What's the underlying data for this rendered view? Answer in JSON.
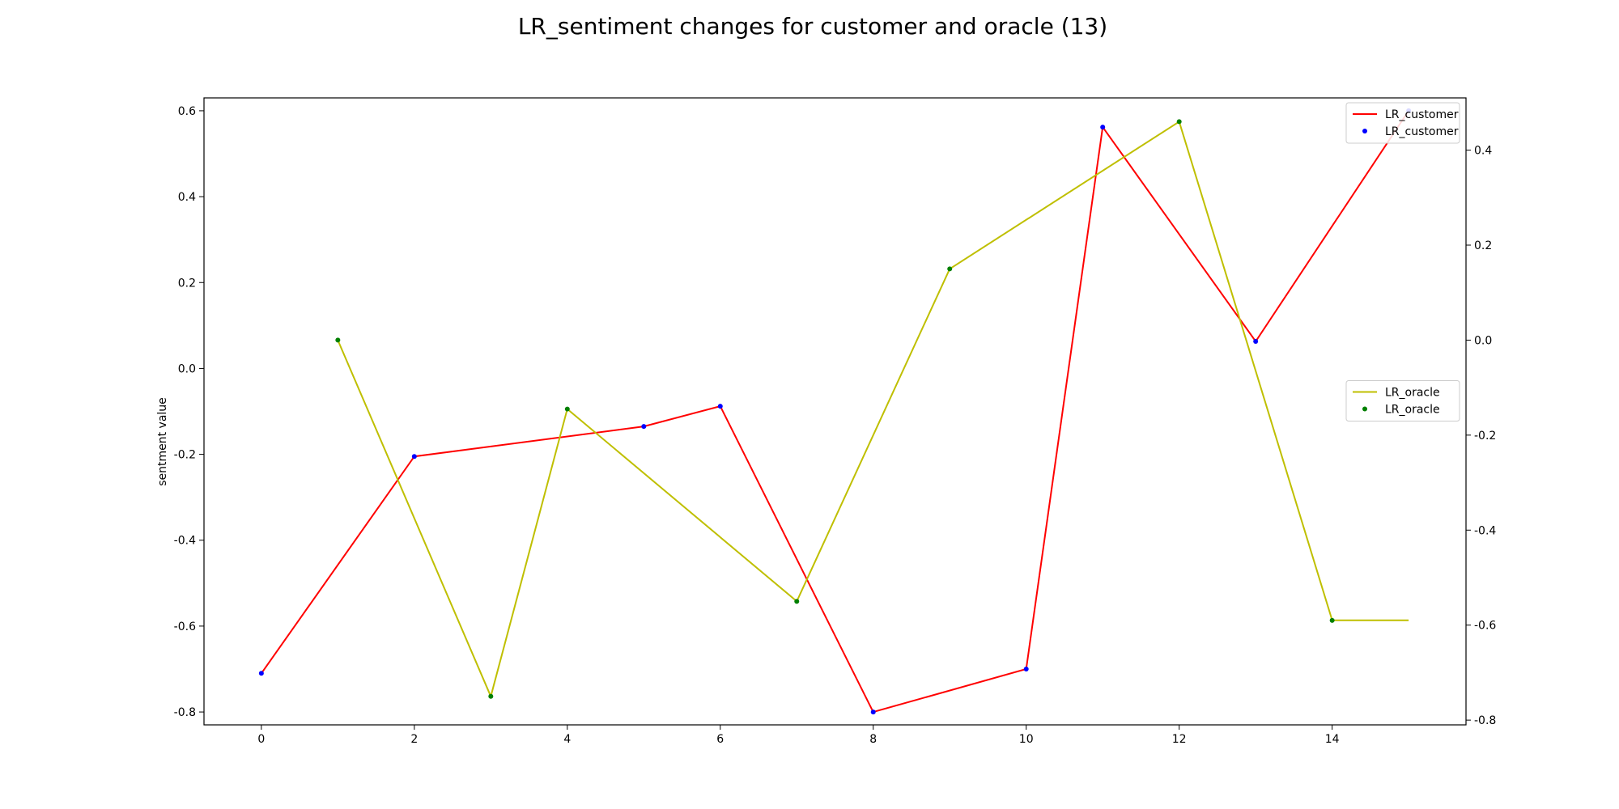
{
  "chart_data": {
    "type": "line",
    "title": "LR_sentiment changes for customer and oracle (13)",
    "ylabel": "sentment value",
    "x_ticks": [
      0,
      2,
      4,
      6,
      8,
      10,
      12,
      14
    ],
    "xlim": [
      -0.75,
      15.75
    ],
    "left_axis": {
      "ylim": [
        -0.83,
        0.63
      ],
      "ticks": [
        0.6,
        0.4,
        0.2,
        0.0,
        -0.2,
        -0.4,
        -0.6,
        -0.8
      ],
      "tick_labels": [
        "0.6",
        "0.4",
        "0.2",
        "0.0",
        "-0.2",
        "-0.4",
        "-0.6",
        "-0.8"
      ]
    },
    "right_axis": {
      "ylim": [
        -0.81,
        0.51
      ],
      "ticks": [
        0.4,
        0.2,
        0.0,
        -0.2,
        -0.4,
        -0.6,
        -0.8
      ],
      "tick_labels": [
        "0.4",
        "0.2",
        "0.0",
        "-0.2",
        "-0.4",
        "-0.6",
        "-0.8"
      ]
    },
    "series": [
      {
        "name": "LR_customer",
        "axis": "left",
        "line_color": "#ff0000",
        "marker_color": "#0000ff",
        "points": [
          {
            "x": 0,
            "y": -0.71,
            "marker": true
          },
          {
            "x": 2,
            "y": -0.205,
            "marker": true
          },
          {
            "x": 5,
            "y": -0.135,
            "marker": true
          },
          {
            "x": 6,
            "y": -0.088,
            "marker": true
          },
          {
            "x": 8,
            "y": -0.8,
            "marker": true
          },
          {
            "x": 10,
            "y": -0.7,
            "marker": true
          },
          {
            "x": 11,
            "y": 0.562,
            "marker": true
          },
          {
            "x": 13,
            "y": 0.063,
            "marker": true
          },
          {
            "x": 15,
            "y": 0.6,
            "marker": true
          }
        ]
      },
      {
        "name": "LR_oracle",
        "axis": "right",
        "line_color": "#bfbf00",
        "marker_color": "#008000",
        "points": [
          {
            "x": 1,
            "y": 0.0,
            "marker": true
          },
          {
            "x": 3,
            "y": -0.75,
            "marker": true
          },
          {
            "x": 4,
            "y": -0.145,
            "marker": true
          },
          {
            "x": 7,
            "y": -0.55,
            "marker": true
          },
          {
            "x": 9,
            "y": 0.15,
            "marker": true
          },
          {
            "x": 12,
            "y": 0.46,
            "marker": true
          },
          {
            "x": 14,
            "y": -0.59,
            "marker": true
          },
          {
            "x": 15,
            "y": -0.59,
            "marker": false
          }
        ]
      }
    ],
    "legends": [
      {
        "position": "top-right",
        "entries": [
          {
            "label": "LR_customer",
            "kind": "line",
            "color": "#ff0000"
          },
          {
            "label": "LR_customer",
            "kind": "dot",
            "color": "#0000ff"
          }
        ]
      },
      {
        "position": "center-right",
        "entries": [
          {
            "label": "LR_oracle",
            "kind": "line",
            "color": "#bfbf00"
          },
          {
            "label": "LR_oracle",
            "kind": "dot",
            "color": "#008000"
          }
        ]
      }
    ]
  }
}
